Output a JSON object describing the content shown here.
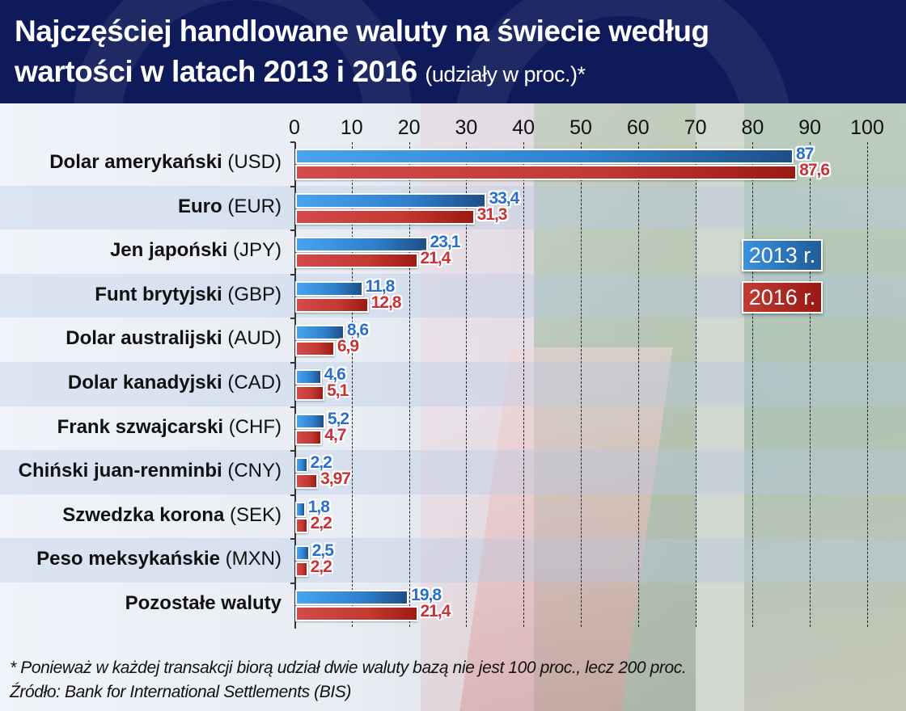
{
  "header": {
    "title_line1": "Najczęściej handlowane waluty na świecie według",
    "title_line2": "wartości w latach 2013 i 2016",
    "title_suffix": "(udziały w proc.)*"
  },
  "legend": {
    "series_2013": "2013 r.",
    "series_2016": "2016 r."
  },
  "footer": {
    "note": "* Ponieważ w każdej transakcji biorą udział dwie waluty bazą nie jest 100 proc., lecz 200 proc.",
    "source": "Źródło: Bank for International Settlements (BIS)"
  },
  "axis": {
    "ticks": [
      "0",
      "10",
      "20",
      "30",
      "40",
      "50",
      "60",
      "70",
      "80",
      "90",
      "100"
    ]
  },
  "rows": [
    {
      "name": "Dolar amerykański",
      "code": "(USD)",
      "v2013": "87",
      "v2016": "87,6"
    },
    {
      "name": "Euro",
      "code": "(EUR)",
      "v2013": "33,4",
      "v2016": "31,3"
    },
    {
      "name": "Jen japoński",
      "code": "(JPY)",
      "v2013": "23,1",
      "v2016": "21,4"
    },
    {
      "name": "Funt brytyjski",
      "code": "(GBP)",
      "v2013": "11,8",
      "v2016": "12,8"
    },
    {
      "name": "Dolar australijski",
      "code": "(AUD)",
      "v2013": "8,6",
      "v2016": "6,9"
    },
    {
      "name": "Dolar kanadyjski",
      "code": "(CAD)",
      "v2013": "4,6",
      "v2016": "5,1"
    },
    {
      "name": "Frank szwajcarski",
      "code": "(CHF)",
      "v2013": "5,2",
      "v2016": "4,7"
    },
    {
      "name": "Chiński juan-renminbi",
      "code": "(CNY)",
      "v2013": "2,2",
      "v2016": "3,97"
    },
    {
      "name": "Szwedzka korona ",
      "code": "(SEK)",
      "v2013": "1,8",
      "v2016": "2,2"
    },
    {
      "name": "Peso meksykańskie",
      "code": "(MXN)",
      "v2013": "2,5",
      "v2016": "2,2"
    },
    {
      "name": "Pozostałe waluty",
      "code": "",
      "v2013": "19,8",
      "v2016": "21,4"
    }
  ],
  "colors": {
    "series_2013": "#3a8fe0",
    "series_2016": "#c63a36",
    "header_bg": "#0f1a5a"
  },
  "chart_data": {
    "type": "bar",
    "orientation": "horizontal",
    "title": "Najczęściej handlowane waluty na świecie według wartości w latach 2013 i 2016 (udziały w proc.)*",
    "categories": [
      "Dolar amerykański (USD)",
      "Euro (EUR)",
      "Jen japoński (JPY)",
      "Funt brytyjski (GBP)",
      "Dolar australijski (AUD)",
      "Dolar kanadyjski (CAD)",
      "Frank szwajcarski (CHF)",
      "Chiński juan-renminbi (CNY)",
      "Szwedzka korona (SEK)",
      "Peso meksykańskie (MXN)",
      "Pozostałe waluty"
    ],
    "series": [
      {
        "name": "2013 r.",
        "color": "#3a8fe0",
        "values": [
          87,
          33.4,
          23.1,
          11.8,
          8.6,
          4.6,
          5.2,
          2.2,
          1.8,
          2.5,
          19.8
        ]
      },
      {
        "name": "2016 r.",
        "color": "#c63a36",
        "values": [
          87.6,
          31.3,
          21.4,
          12.8,
          6.9,
          5.1,
          4.7,
          3.97,
          2.2,
          2.2,
          21.4
        ]
      }
    ],
    "xlabel": "",
    "ylabel": "",
    "xlim": [
      0,
      100
    ],
    "xticks": [
      0,
      10,
      20,
      30,
      40,
      50,
      60,
      70,
      80,
      90,
      100
    ],
    "grid": true,
    "legend_position": "right-inside",
    "annotations": [
      "* Ponieważ w każdej transakcji biorą udział dwie waluty bazą nie jest 100 proc., lecz 200 proc.",
      "Źródło: Bank for International Settlements (BIS)"
    ]
  }
}
